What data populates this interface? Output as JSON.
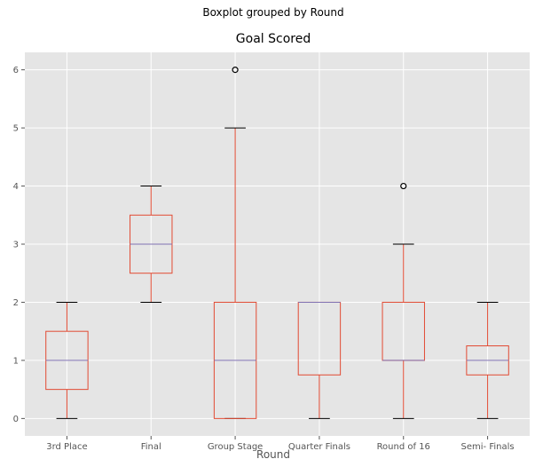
{
  "chart_data": {
    "type": "boxplot",
    "suptitle": "Boxplot grouped by Round",
    "title": "Goal Scored",
    "xlabel": "Round",
    "ylabel": "",
    "ylim": [
      -0.3,
      6.3
    ],
    "yticks": [
      0,
      1,
      2,
      3,
      4,
      5,
      6
    ],
    "grid": true,
    "categories": [
      "3rd Place",
      "Final",
      "Group Stage",
      "Quarter Finals",
      "Round of 16",
      "Semi- Finals"
    ],
    "boxes": [
      {
        "category": "3rd Place",
        "whisker_low": 0,
        "q1": 0.5,
        "median": 1,
        "q3": 1.5,
        "whisker_high": 2,
        "outliers": []
      },
      {
        "category": "Final",
        "whisker_low": 2,
        "q1": 2.5,
        "median": 3,
        "q3": 3.5,
        "whisker_high": 4,
        "outliers": []
      },
      {
        "category": "Group Stage",
        "whisker_low": 0,
        "q1": 0,
        "median": 1,
        "q3": 2,
        "whisker_high": 5,
        "outliers": [
          6
        ]
      },
      {
        "category": "Quarter Finals",
        "whisker_low": 0,
        "q1": 0.75,
        "median": 2,
        "q3": 2,
        "whisker_high": 2,
        "outliers": []
      },
      {
        "category": "Round of 16",
        "whisker_low": 0,
        "q1": 1,
        "median": 1,
        "q3": 2,
        "whisker_high": 3,
        "outliers": [
          4
        ]
      },
      {
        "category": "Semi- Finals",
        "whisker_low": 0,
        "q1": 0.75,
        "median": 1,
        "q3": 1.25,
        "whisker_high": 2,
        "outliers": []
      }
    ],
    "colors": {
      "plot_background": "#e5e5e5",
      "grid": "#ffffff",
      "box": "#e24a33",
      "median": "#8172b2",
      "cap": "#000000",
      "outlier": "#000000"
    }
  }
}
